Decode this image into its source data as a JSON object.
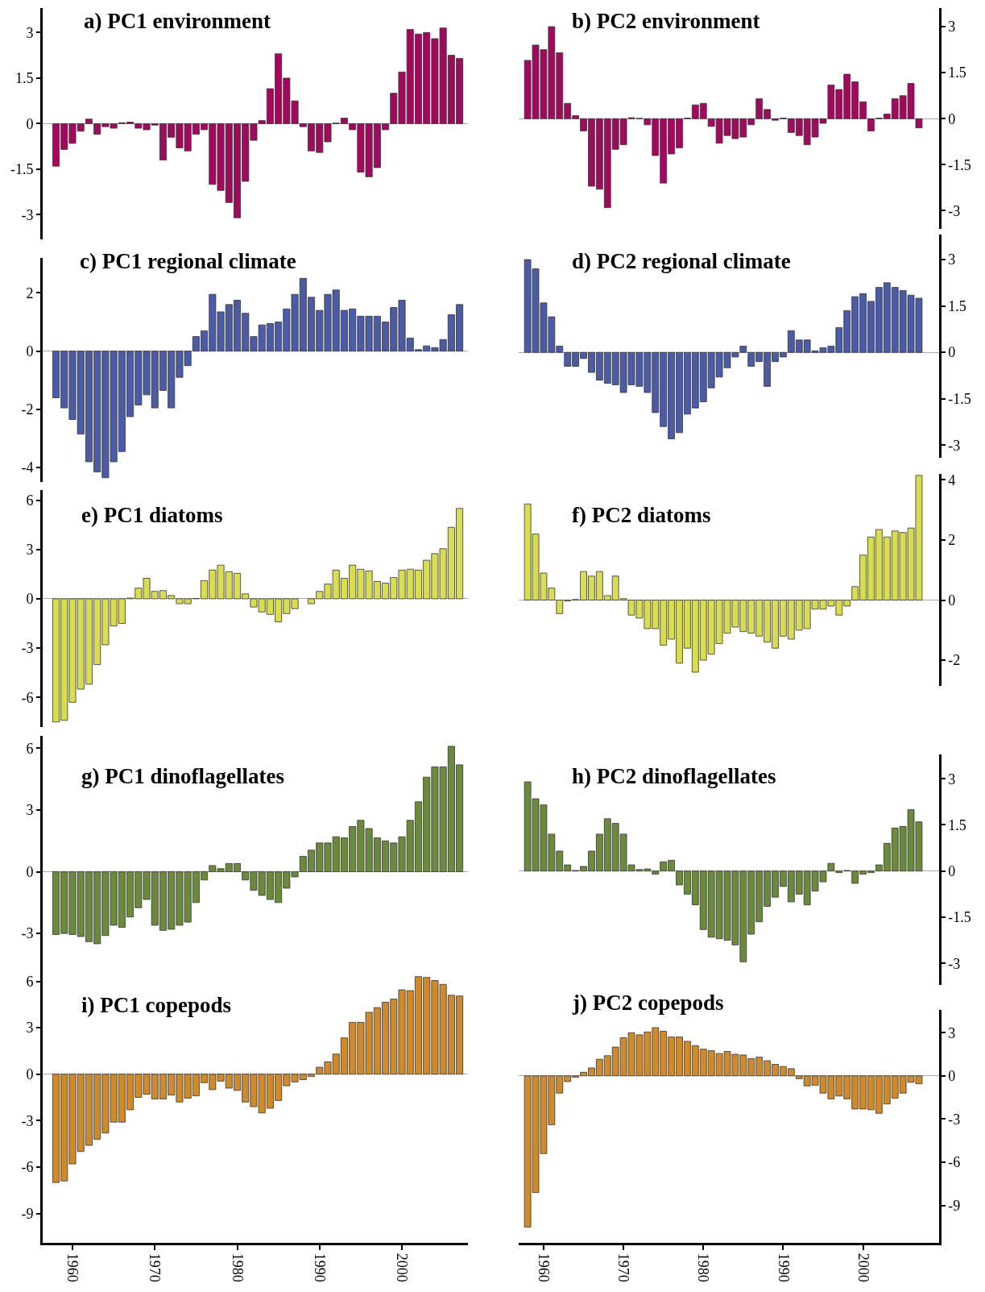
{
  "chart_data": [
    {
      "type": "bar",
      "title": "a) PC1 environment",
      "x": [
        1958,
        1959,
        1960,
        1961,
        1962,
        1963,
        1964,
        1965,
        1966,
        1967,
        1968,
        1969,
        1970,
        1971,
        1972,
        1973,
        1974,
        1975,
        1976,
        1977,
        1978,
        1979,
        1980,
        1981,
        1982,
        1983,
        1984,
        1985,
        1986,
        1987,
        1988,
        1989,
        1990,
        1991,
        1992,
        1993,
        1994,
        1995,
        1996,
        1997,
        1998,
        1999,
        2000,
        2001,
        2002,
        2003,
        2004,
        2005,
        2006,
        2007
      ],
      "xlim": [
        1956.4,
        2008
      ],
      "ylim": [
        -3.8,
        3.8
      ],
      "yticks": [
        3,
        1.5,
        0,
        -1.5,
        -3
      ],
      "tick_labels": "y",
      "series": [
        {
          "color": "#a3085f",
          "values": [
            -1.4,
            -0.85,
            -0.65,
            -0.25,
            0.15,
            -0.35,
            -0.1,
            -0.15,
            0.03,
            0.05,
            -0.15,
            -0.2,
            -0.05,
            -1.2,
            -0.45,
            -0.8,
            -0.9,
            -0.35,
            -0.2,
            -2.0,
            -2.2,
            -2.6,
            -3.1,
            -1.9,
            -0.55,
            0.1,
            1.15,
            2.3,
            1.5,
            0.75,
            -0.1,
            -0.9,
            -0.95,
            -0.6,
            0.02,
            0.18,
            -0.2,
            -1.6,
            -1.75,
            -1.45,
            -0.2,
            1.0,
            1.7,
            3.1,
            2.95,
            3.0,
            2.8,
            3.15,
            2.25,
            2.15
          ]
        }
      ]
    },
    {
      "type": "bar",
      "title": "b) PC2 environment",
      "x": [
        1958,
        1959,
        1960,
        1961,
        1962,
        1963,
        1964,
        1965,
        1966,
        1967,
        1968,
        1969,
        1970,
        1971,
        1972,
        1973,
        1974,
        1975,
        1976,
        1977,
        1978,
        1979,
        1980,
        1981,
        1982,
        1983,
        1984,
        1985,
        1986,
        1987,
        1988,
        1989,
        1990,
        1991,
        1992,
        1993,
        1994,
        1995,
        1996,
        1997,
        1998,
        1999,
        2000,
        2001,
        2002,
        2003,
        2004,
        2005,
        2006,
        2007
      ],
      "xlim": [
        1956.9,
        2009.5
      ],
      "y2lim": [
        -3.6,
        3.6
      ],
      "y2ticks": [
        3,
        1.5,
        0,
        -1.5,
        -3
      ],
      "tick_labels": "y2",
      "series": [
        {
          "color": "#a3085f",
          "axis": "y2",
          "values": [
            1.9,
            2.4,
            2.25,
            3.0,
            2.15,
            0.5,
            0.1,
            -0.4,
            -2.2,
            -2.3,
            -2.9,
            -1.0,
            -0.85,
            0.03,
            0.01,
            -0.2,
            -1.2,
            -2.1,
            -1.15,
            -0.95,
            0.02,
            0.45,
            0.5,
            -0.25,
            -0.8,
            -0.55,
            -0.65,
            -0.6,
            -0.2,
            0.65,
            0.3,
            -0.05,
            0.02,
            -0.45,
            -0.55,
            -0.85,
            -0.6,
            -0.15,
            1.1,
            0.95,
            1.45,
            1.2,
            0.55,
            -0.4,
            0.02,
            0.15,
            0.65,
            0.75,
            1.15,
            -0.3
          ]
        }
      ]
    },
    {
      "type": "bar",
      "title": "c) PC1 regional climate",
      "x": [
        1958,
        1959,
        1960,
        1961,
        1962,
        1963,
        1964,
        1965,
        1966,
        1967,
        1968,
        1969,
        1970,
        1971,
        1972,
        1973,
        1974,
        1975,
        1976,
        1977,
        1978,
        1979,
        1980,
        1981,
        1982,
        1983,
        1984,
        1985,
        1986,
        1987,
        1988,
        1989,
        1990,
        1991,
        1992,
        1993,
        1994,
        1995,
        1996,
        1997,
        1998,
        1999,
        2000,
        2001,
        2002,
        2003,
        2004,
        2005,
        2006,
        2007
      ],
      "xlim": [
        1956.4,
        2008
      ],
      "ylim": [
        -4.5,
        3.2
      ],
      "yticks": [
        2,
        0,
        -2,
        -4
      ],
      "tick_labels": "y",
      "series": [
        {
          "color": "#4b5ba6",
          "values": [
            -1.6,
            -1.95,
            -2.35,
            -2.85,
            -3.8,
            -4.15,
            -4.35,
            -3.8,
            -3.45,
            -2.25,
            -1.85,
            -1.5,
            -1.95,
            -1.35,
            -1.95,
            -0.9,
            -0.5,
            0.5,
            0.7,
            1.95,
            1.35,
            1.6,
            1.75,
            1.3,
            0.5,
            0.9,
            0.95,
            1.0,
            1.45,
            1.95,
            2.5,
            1.85,
            1.4,
            1.95,
            2.1,
            1.4,
            1.45,
            1.2,
            1.2,
            1.2,
            1.0,
            1.5,
            1.75,
            0.45,
            0.05,
            0.18,
            0.12,
            0.4,
            1.25,
            1.6
          ]
        }
      ]
    },
    {
      "type": "bar",
      "title": "d) PC2 regional climate",
      "x": [
        1958,
        1959,
        1960,
        1961,
        1962,
        1963,
        1964,
        1965,
        1966,
        1967,
        1968,
        1969,
        1970,
        1971,
        1972,
        1973,
        1974,
        1975,
        1976,
        1977,
        1978,
        1979,
        1980,
        1981,
        1982,
        1983,
        1984,
        1985,
        1986,
        1987,
        1988,
        1989,
        1990,
        1991,
        1992,
        1993,
        1994,
        1995,
        1996,
        1997,
        1998,
        1999,
        2000,
        2001,
        2002,
        2003,
        2004,
        2005,
        2006,
        2007
      ],
      "xlim": [
        1956.9,
        2009.5
      ],
      "y2lim": [
        -3.4,
        3.8
      ],
      "y2ticks": [
        3,
        1.5,
        0,
        -1.5,
        -3
      ],
      "tick_labels": "y2",
      "series": [
        {
          "color": "#4b5ba6",
          "axis": "y2",
          "values": [
            3.0,
            2.7,
            1.6,
            1.15,
            0.2,
            -0.45,
            -0.45,
            -0.2,
            -0.65,
            -0.9,
            -1.0,
            -1.05,
            -1.3,
            -1.05,
            -1.1,
            -1.3,
            -1.95,
            -2.4,
            -2.8,
            -2.6,
            -2.0,
            -1.8,
            -1.6,
            -1.15,
            -0.8,
            -0.5,
            -0.15,
            0.2,
            -0.45,
            -0.3,
            -1.1,
            -0.3,
            -0.15,
            0.7,
            0.4,
            0.4,
            0.05,
            0.15,
            0.2,
            0.8,
            1.35,
            1.8,
            1.9,
            1.65,
            2.1,
            2.25,
            2.1,
            2.0,
            1.85,
            1.75
          ]
        }
      ]
    },
    {
      "type": "bar",
      "title": "e) PC1 diatoms",
      "x": [
        1958,
        1959,
        1960,
        1961,
        1962,
        1963,
        1964,
        1965,
        1966,
        1967,
        1968,
        1969,
        1970,
        1971,
        1972,
        1973,
        1974,
        1975,
        1976,
        1977,
        1978,
        1979,
        1980,
        1981,
        1982,
        1983,
        1984,
        1985,
        1986,
        1987,
        1988,
        1989,
        1990,
        1991,
        1992,
        1993,
        1994,
        1995,
        1996,
        1997,
        1998,
        1999,
        2000,
        2001,
        2002,
        2003,
        2004,
        2005,
        2006,
        2007
      ],
      "xlim": [
        1956.4,
        2008
      ],
      "ylim": [
        -7.8,
        6.6
      ],
      "yticks": [
        6,
        3,
        0,
        -3,
        -6
      ],
      "tick_labels": "y",
      "series": [
        {
          "color": "#d9dd52",
          "values": [
            -7.5,
            -7.4,
            -6.3,
            -5.5,
            -5.2,
            -4.0,
            -2.8,
            -1.65,
            -1.5,
            0.05,
            0.65,
            1.25,
            0.45,
            0.5,
            0.2,
            -0.3,
            -0.3,
            0.02,
            1.1,
            1.75,
            2.05,
            1.65,
            1.55,
            0.3,
            -0.5,
            -0.8,
            -0.95,
            -1.4,
            -0.9,
            -0.6,
            null,
            -0.3,
            0.45,
            0.9,
            1.75,
            1.25,
            2.05,
            1.8,
            1.7,
            1.05,
            0.95,
            1.3,
            1.75,
            1.8,
            1.75,
            2.35,
            2.75,
            3.05,
            4.35,
            5.5
          ]
        }
      ]
    },
    {
      "type": "bar",
      "title": "f) PC2 diatoms",
      "x": [
        1958,
        1959,
        1960,
        1961,
        1962,
        1963,
        1964,
        1965,
        1966,
        1967,
        1968,
        1969,
        1970,
        1971,
        1972,
        1973,
        1974,
        1975,
        1976,
        1977,
        1978,
        1979,
        1980,
        1981,
        1982,
        1983,
        1984,
        1985,
        1986,
        1987,
        1988,
        1989,
        1990,
        1991,
        1992,
        1993,
        1994,
        1995,
        1996,
        1997,
        1998,
        1999,
        2000,
        2001,
        2002,
        2003,
        2004,
        2005,
        2006,
        2007
      ],
      "xlim": [
        1956.9,
        2009.5
      ],
      "y2lim": [
        -2.85,
        4.2
      ],
      "y2ticks": [
        4,
        2,
        0,
        -2
      ],
      "tick_labels": "y2",
      "series": [
        {
          "color": "#d9dd52",
          "axis": "y2",
          "values": [
            3.2,
            2.2,
            0.9,
            0.4,
            -0.45,
            -0.03,
            0.02,
            0.95,
            0.8,
            0.95,
            0.15,
            0.8,
            0.05,
            -0.5,
            -0.6,
            -0.95,
            -0.95,
            -1.5,
            -1.3,
            -2.1,
            -1.6,
            -2.4,
            -2.0,
            -1.8,
            -1.45,
            -1.1,
            -0.9,
            -1.05,
            -1.1,
            -1.2,
            -1.4,
            -1.6,
            -1.2,
            -1.3,
            -1.0,
            -0.95,
            -0.3,
            -0.3,
            -0.2,
            -0.5,
            -0.2,
            0.45,
            1.5,
            2.1,
            2.35,
            2.1,
            2.3,
            2.25,
            2.4,
            4.15
          ]
        }
      ]
    },
    {
      "type": "bar",
      "title": "g) PC1 dinoflagellates",
      "x": [
        1958,
        1959,
        1960,
        1961,
        1962,
        1963,
        1964,
        1965,
        1966,
        1967,
        1968,
        1969,
        1970,
        1971,
        1972,
        1973,
        1974,
        1975,
        1976,
        1977,
        1978,
        1979,
        1980,
        1981,
        1982,
        1983,
        1984,
        1985,
        1986,
        1987,
        1988,
        1989,
        1990,
        1991,
        1992,
        1993,
        1994,
        1995,
        1996,
        1997,
        1998,
        1999,
        2000,
        2001,
        2002,
        2003,
        2004,
        2005,
        2006,
        2007
      ],
      "xlim": [
        1956.4,
        2008
      ],
      "ylim": [
        -4.5,
        6.6
      ],
      "yticks": [
        6,
        3,
        0,
        -3
      ],
      "tick_labels": "y",
      "series": [
        {
          "color": "#6b8a3c",
          "values": [
            -3.05,
            -3.0,
            -3.05,
            -3.15,
            -3.4,
            -3.5,
            -3.1,
            -2.6,
            -2.7,
            -2.2,
            -1.75,
            -1.35,
            -2.6,
            -2.85,
            -2.8,
            -2.6,
            -2.45,
            -1.5,
            -0.4,
            0.3,
            0.15,
            0.4,
            0.4,
            -0.4,
            -0.9,
            -1.15,
            -1.35,
            -1.5,
            -0.8,
            -0.25,
            0.75,
            1.05,
            1.4,
            1.4,
            1.7,
            1.65,
            2.2,
            2.5,
            2.1,
            1.65,
            1.5,
            1.4,
            1.7,
            2.5,
            3.4,
            4.6,
            5.1,
            5.1,
            6.1,
            5.2
          ]
        }
      ]
    },
    {
      "type": "bar",
      "title": "h) PC2 dinoflagellates",
      "x": [
        1958,
        1959,
        1960,
        1961,
        1962,
        1963,
        1964,
        1965,
        1966,
        1967,
        1968,
        1969,
        1970,
        1971,
        1972,
        1973,
        1974,
        1975,
        1976,
        1977,
        1978,
        1979,
        1980,
        1981,
        1982,
        1983,
        1984,
        1985,
        1986,
        1987,
        1988,
        1989,
        1990,
        1991,
        1992,
        1993,
        1994,
        1995,
        1996,
        1997,
        1998,
        1999,
        2000,
        2001,
        2002,
        2003,
        2004,
        2005,
        2006,
        2007
      ],
      "xlim": [
        1956.9,
        2009.5
      ],
      "y2lim": [
        -3.7,
        3.8
      ],
      "y2ticks": [
        3,
        1.5,
        0,
        -1.5,
        -3
      ],
      "tick_labels": "y2",
      "series": [
        {
          "color": "#6b8a3c",
          "axis": "y2",
          "values": [
            2.9,
            2.35,
            2.15,
            1.2,
            0.65,
            0.2,
            0.02,
            0.15,
            0.65,
            1.2,
            1.7,
            1.55,
            1.2,
            0.2,
            0.05,
            0.07,
            -0.1,
            0.3,
            0.35,
            -0.45,
            -0.75,
            -1.1,
            -1.9,
            -2.15,
            -2.2,
            -2.25,
            -2.4,
            -2.95,
            -2.05,
            -1.65,
            -1.15,
            -0.85,
            -0.5,
            -1.0,
            -0.75,
            -1.1,
            -0.65,
            -0.35,
            0.25,
            -0.05,
            0.02,
            -0.4,
            -0.1,
            -0.05,
            0.2,
            0.9,
            1.4,
            1.45,
            2.0,
            1.6
          ]
        }
      ]
    },
    {
      "type": "bar",
      "title": "i) PC1 copepods",
      "x": [
        1958,
        1959,
        1960,
        1961,
        1962,
        1963,
        1964,
        1965,
        1966,
        1967,
        1968,
        1969,
        1970,
        1971,
        1972,
        1973,
        1974,
        1975,
        1976,
        1977,
        1978,
        1979,
        1980,
        1981,
        1982,
        1983,
        1984,
        1985,
        1986,
        1987,
        1988,
        1989,
        1990,
        1991,
        1992,
        1993,
        1994,
        1995,
        1996,
        1997,
        1998,
        1999,
        2000,
        2001,
        2002,
        2003,
        2004,
        2005,
        2006,
        2007
      ],
      "xlim": [
        1956.4,
        2008
      ],
      "xticks": [
        1960,
        1970,
        1980,
        1990,
        2000
      ],
      "ylim": [
        -10.9,
        7.1
      ],
      "yticks": [
        6,
        3,
        0,
        -3,
        -6,
        -9
      ],
      "series": [
        {
          "color": "#cf8b2b",
          "values": [
            -7.0,
            -6.9,
            -5.8,
            -5.0,
            -4.6,
            -4.2,
            -3.8,
            -3.1,
            -3.1,
            -2.3,
            -1.5,
            -1.3,
            -1.6,
            -1.6,
            -1.35,
            -1.8,
            -1.55,
            -1.4,
            -0.55,
            -1.0,
            -0.45,
            -0.9,
            -1.05,
            -1.8,
            -2.1,
            -2.5,
            -2.2,
            -1.7,
            -0.75,
            -0.5,
            -0.35,
            -0.15,
            0.45,
            0.8,
            1.3,
            2.35,
            3.35,
            3.35,
            4.0,
            4.3,
            4.65,
            4.85,
            5.45,
            5.4,
            6.3,
            6.25,
            6.05,
            5.8,
            5.1,
            5.05
          ]
        }
      ]
    },
    {
      "type": "bar",
      "title": "j) PC2 copepods",
      "x": [
        1958,
        1959,
        1960,
        1961,
        1962,
        1963,
        1964,
        1965,
        1966,
        1967,
        1968,
        1969,
        1970,
        1971,
        1972,
        1973,
        1974,
        1975,
        1976,
        1977,
        1978,
        1979,
        1980,
        1981,
        1982,
        1983,
        1984,
        1985,
        1986,
        1987,
        1988,
        1989,
        1990,
        1991,
        1992,
        1993,
        1994,
        1995,
        1996,
        1997,
        1998,
        1999,
        2000,
        2001,
        2002,
        2003,
        2004,
        2005,
        2006,
        2007
      ],
      "xlim": [
        1956.9,
        2009.5
      ],
      "xticks": [
        1960,
        1970,
        1980,
        1990,
        2000
      ],
      "y2lim": [
        -11.6,
        4.6
      ],
      "y2ticks": [
        3,
        0,
        -3,
        -6,
        -9
      ],
      "series": [
        {
          "color": "#cf8b2b",
          "axis": "y2",
          "values": [
            -10.5,
            -8.1,
            -5.4,
            -3.4,
            -1.2,
            -0.4,
            -0.1,
            0.25,
            0.55,
            1.15,
            1.4,
            2.0,
            2.65,
            3.0,
            2.85,
            3.05,
            3.35,
            3.1,
            2.7,
            2.7,
            2.4,
            2.1,
            1.85,
            1.75,
            1.55,
            1.7,
            1.5,
            1.45,
            1.2,
            1.3,
            1.05,
            0.8,
            0.65,
            0.5,
            -0.2,
            -0.7,
            -0.65,
            -1.2,
            -1.6,
            -1.4,
            -1.6,
            -2.3,
            -2.3,
            -2.35,
            -2.6,
            -1.95,
            -1.55,
            -1.2,
            -0.45,
            -0.55
          ]
        }
      ]
    }
  ]
}
